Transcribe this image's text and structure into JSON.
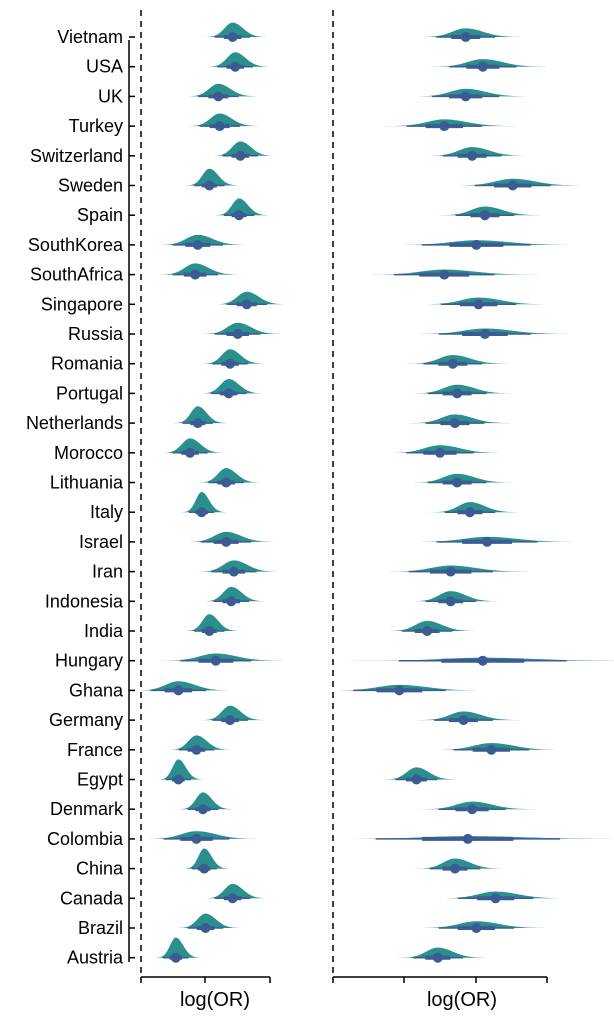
{
  "chart_data": [
    {
      "type": "half-eye (density + interval)",
      "panel": "left",
      "xlabel": "log(OR)",
      "reference_line": "dashed vertical line at left of panel",
      "categories": [
        "Vietnam",
        "USA",
        "UK",
        "Turkey",
        "Switzerland",
        "Sweden",
        "Spain",
        "SouthKorea",
        "SouthAfrica",
        "Singapore",
        "Russia",
        "Romania",
        "Portugal",
        "Netherlands",
        "Morocco",
        "Lithuania",
        "Italy",
        "Israel",
        "Iran",
        "Indonesia",
        "India",
        "Hungary",
        "Ghana",
        "Germany",
        "France",
        "Egypt",
        "Denmark",
        "Colombia",
        "China",
        "Canada",
        "Brazil",
        "Austria"
      ],
      "estimates": [
        0.71,
        0.73,
        0.6,
        0.61,
        0.77,
        0.53,
        0.76,
        0.44,
        0.42,
        0.82,
        0.75,
        0.69,
        0.68,
        0.44,
        0.38,
        0.66,
        0.47,
        0.66,
        0.72,
        0.7,
        0.53,
        0.58,
        0.29,
        0.69,
        0.43,
        0.29,
        0.48,
        0.43,
        0.49,
        0.71,
        0.5,
        0.27
      ],
      "spread": [
        0.07,
        0.07,
        0.08,
        0.08,
        0.07,
        0.06,
        0.06,
        0.1,
        0.09,
        0.08,
        0.09,
        0.07,
        0.07,
        0.06,
        0.07,
        0.07,
        0.05,
        0.1,
        0.09,
        0.07,
        0.06,
        0.14,
        0.11,
        0.07,
        0.07,
        0.05,
        0.06,
        0.13,
        0.05,
        0.07,
        0.07,
        0.05
      ]
    },
    {
      "type": "half-eye (density + interval)",
      "panel": "right",
      "xlabel": "log(OR)",
      "reference_line": "dashed vertical line at left of panel",
      "categories": [
        "Vietnam",
        "USA",
        "UK",
        "Turkey",
        "Switzerland",
        "Sweden",
        "Spain",
        "SouthKorea",
        "SouthAfrica",
        "Singapore",
        "Russia",
        "Romania",
        "Portugal",
        "Netherlands",
        "Morocco",
        "Lithuania",
        "Italy",
        "Israel",
        "Iran",
        "Indonesia",
        "India",
        "Hungary",
        "Ghana",
        "Germany",
        "France",
        "Egypt",
        "Denmark",
        "Colombia",
        "China",
        "Canada",
        "Brazil",
        "Austria"
      ],
      "estimates": [
        0.62,
        0.7,
        0.62,
        0.52,
        0.65,
        0.84,
        0.71,
        0.67,
        0.52,
        0.68,
        0.71,
        0.56,
        0.58,
        0.57,
        0.5,
        0.58,
        0.64,
        0.72,
        0.55,
        0.55,
        0.44,
        0.7,
        0.31,
        0.61,
        0.74,
        0.39,
        0.65,
        0.63,
        0.57,
        0.76,
        0.67,
        0.49
      ],
      "spread": [
        0.07,
        0.08,
        0.08,
        0.09,
        0.07,
        0.09,
        0.07,
        0.13,
        0.12,
        0.09,
        0.11,
        0.07,
        0.07,
        0.07,
        0.08,
        0.07,
        0.06,
        0.12,
        0.1,
        0.06,
        0.06,
        0.2,
        0.11,
        0.07,
        0.09,
        0.05,
        0.08,
        0.22,
        0.06,
        0.09,
        0.09,
        0.06
      ]
    }
  ],
  "colors": {
    "density": "#2a8f8d",
    "interval": "#3a5c93"
  }
}
